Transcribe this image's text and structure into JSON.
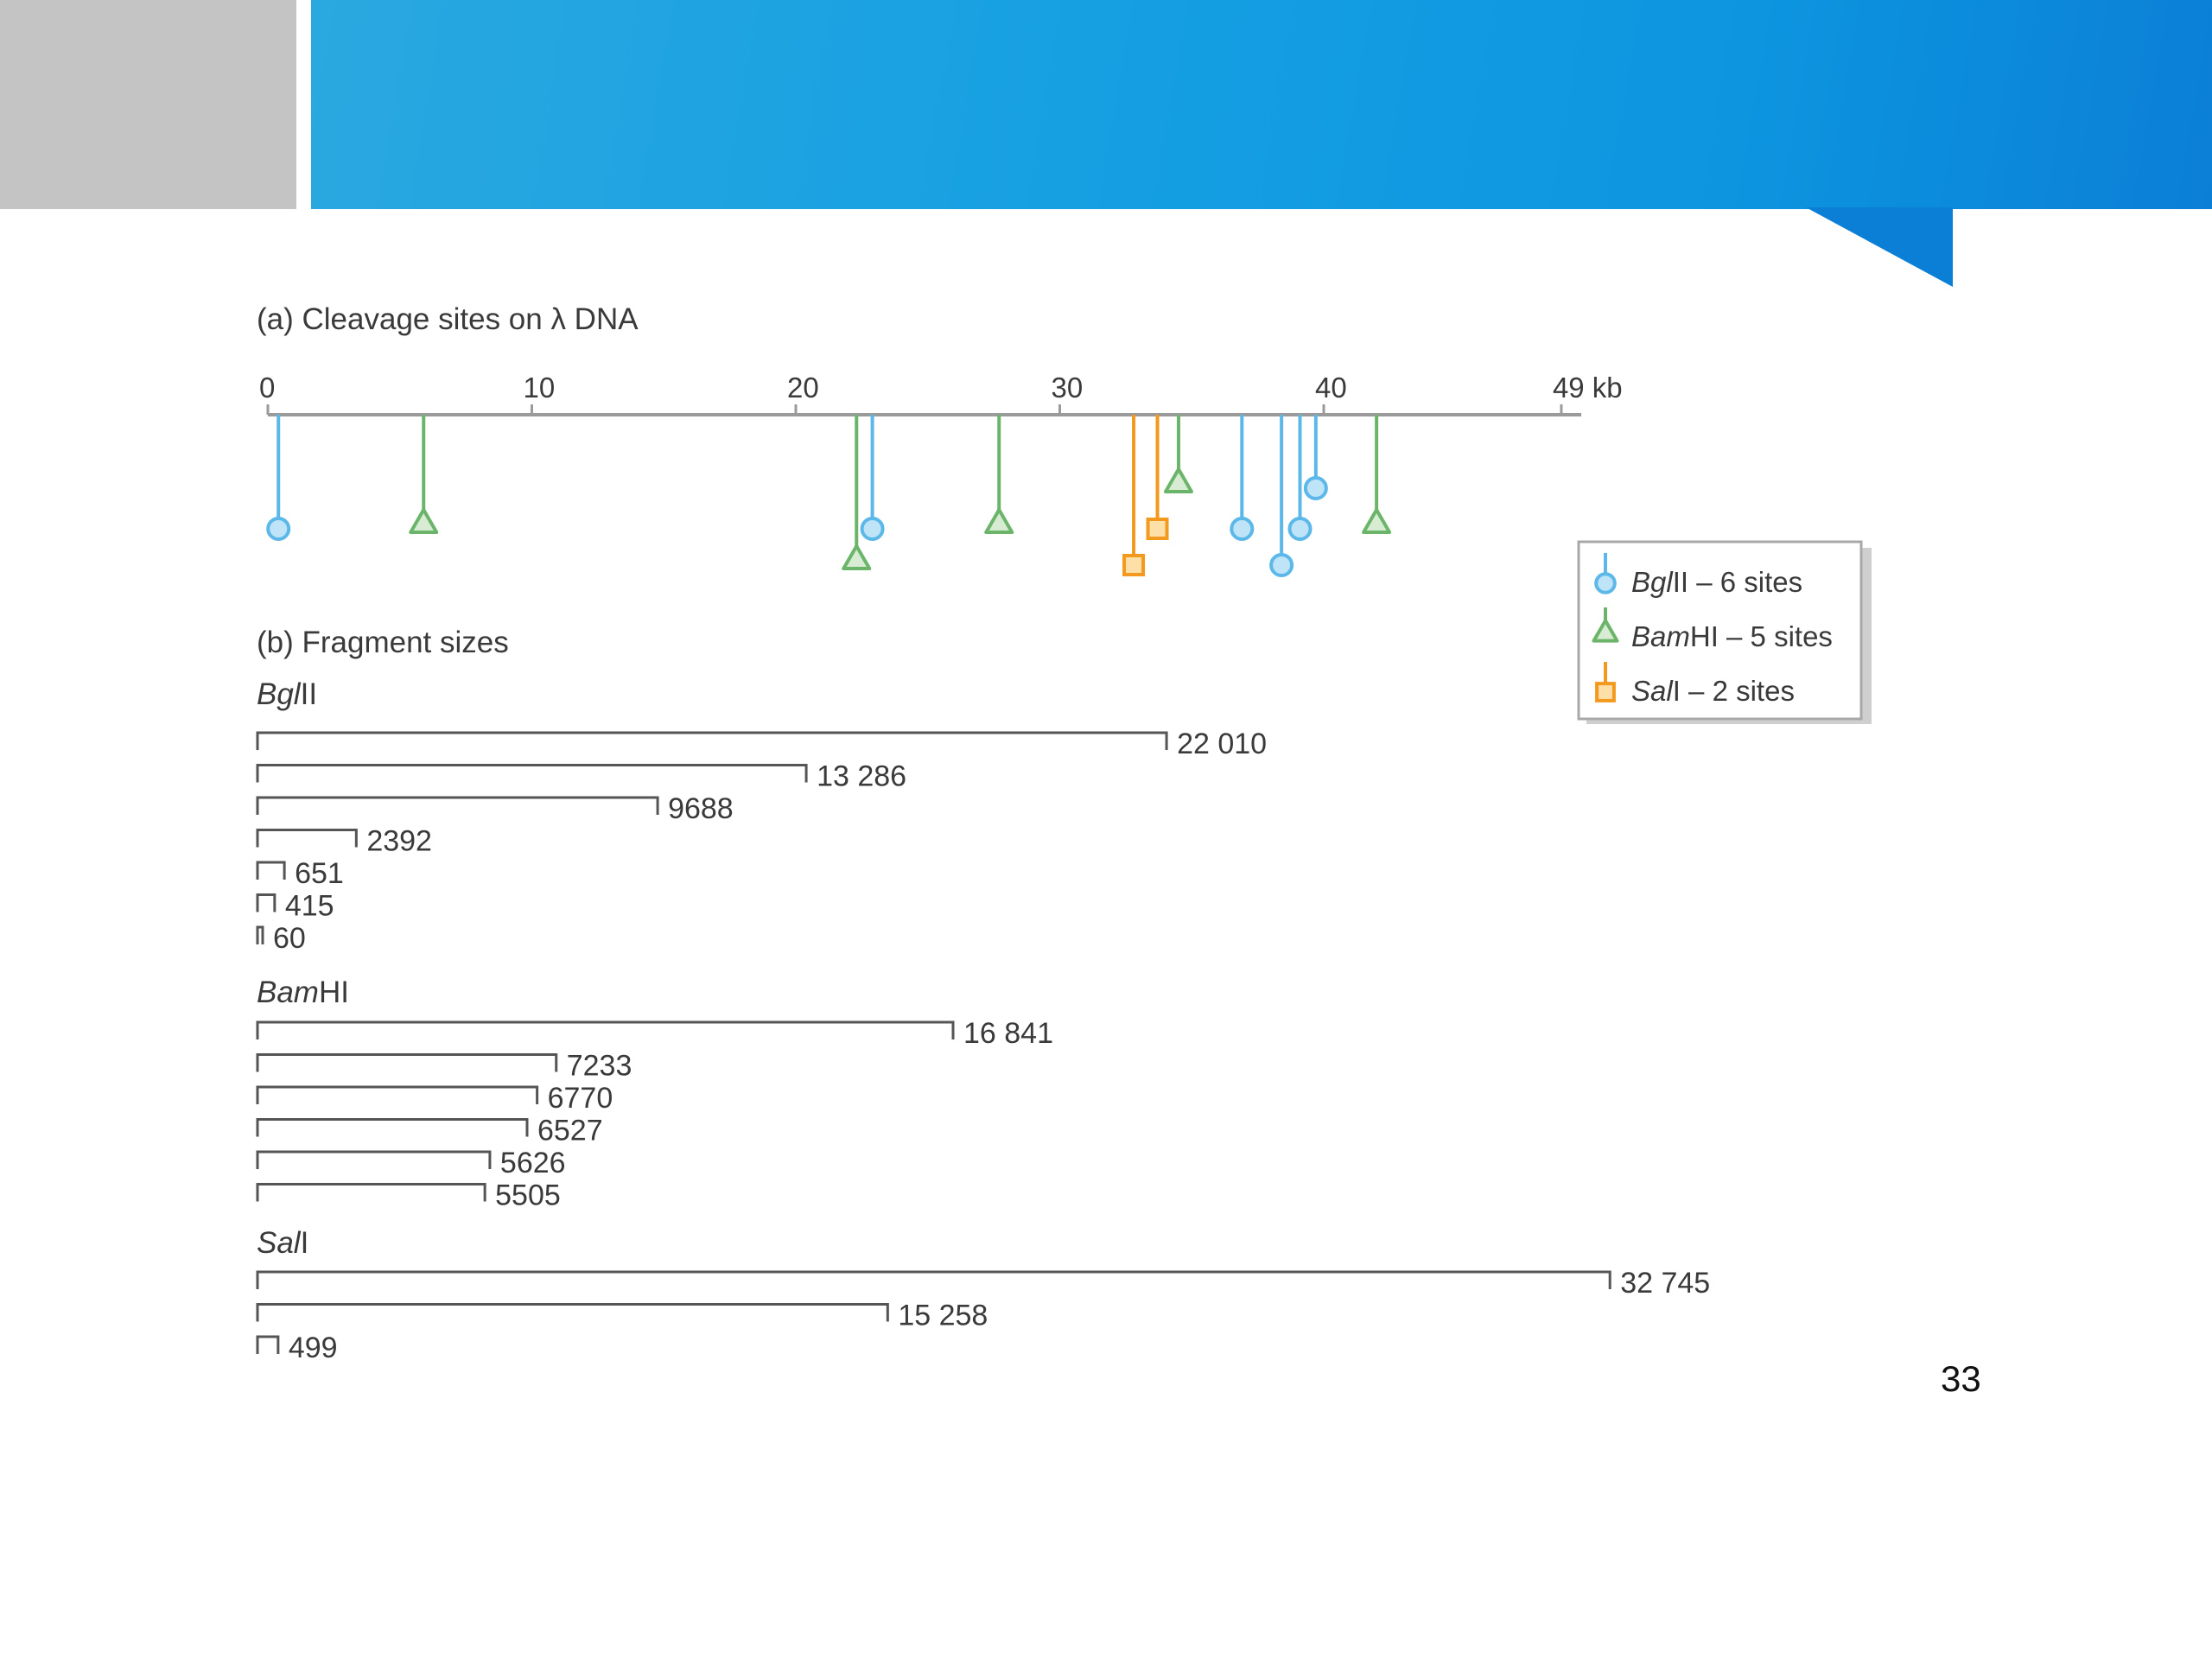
{
  "banner": {
    "accent_color": "#1aa3e0",
    "side_color": "#c4c4c4"
  },
  "panel_a": {
    "title": "(a) Cleavage sites on λ DNA",
    "axis": {
      "min": 0,
      "max": 49,
      "unit": "kb",
      "ticks": [
        {
          "value": 0,
          "label": "0"
        },
        {
          "value": 10,
          "label": "10"
        },
        {
          "value": 20,
          "label": "20"
        },
        {
          "value": 30,
          "label": "30"
        },
        {
          "value": 40,
          "label": "40"
        },
        {
          "value": 49,
          "label": "49 kb"
        }
      ]
    },
    "enzymes": [
      {
        "key": "bglII",
        "color": "#5bb8e8",
        "marker": "circle",
        "sites_kb": [
          0.4,
          22.9,
          36.9,
          38.4,
          39.1,
          39.7
        ],
        "site_depth": [
          1,
          1,
          1,
          2,
          1,
          0
        ]
      },
      {
        "key": "bamHI",
        "color": "#6bb56a",
        "marker": "triangle",
        "sites_kb": [
          5.9,
          22.3,
          27.7,
          34.5,
          42.0
        ],
        "site_depth": [
          1,
          2,
          1,
          0,
          1
        ]
      },
      {
        "key": "salI",
        "color": "#f39a1e",
        "marker": "square",
        "sites_kb": [
          32.8,
          33.7
        ],
        "site_depth": [
          2,
          1
        ]
      }
    ]
  },
  "legend": {
    "items": [
      {
        "name": "BglII",
        "name_italic": "Bgl",
        "name_rest": "II",
        "desc": " – 6 sites",
        "marker": "circle",
        "color": "#5bb8e8"
      },
      {
        "name": "BamHI",
        "name_italic": "Bam",
        "name_rest": "HI",
        "desc": " – 5 sites",
        "marker": "triangle",
        "color": "#6bb56a"
      },
      {
        "name": "SalI",
        "name_italic": "Sal",
        "name_rest": "I",
        "desc": " – 2 sites",
        "marker": "square",
        "color": "#f39a1e"
      }
    ]
  },
  "panel_b": {
    "title": "(b) Fragment sizes",
    "groups": [
      {
        "italic": "Bgl",
        "rest": "II",
        "fragments": [
          {
            "bp": 22010,
            "label": "22 010"
          },
          {
            "bp": 13286,
            "label": "13 286"
          },
          {
            "bp": 9688,
            "label": "9688"
          },
          {
            "bp": 2392,
            "label": "2392"
          },
          {
            "bp": 651,
            "label": "651"
          },
          {
            "bp": 415,
            "label": "415"
          },
          {
            "bp": 60,
            "label": "60"
          }
        ]
      },
      {
        "italic": "Bam",
        "rest": "HI",
        "fragments": [
          {
            "bp": 16841,
            "label": "16 841"
          },
          {
            "bp": 7233,
            "label": "7233"
          },
          {
            "bp": 6770,
            "label": "6770"
          },
          {
            "bp": 6527,
            "label": "6527"
          },
          {
            "bp": 5626,
            "label": "5626"
          },
          {
            "bp": 5505,
            "label": "5505"
          }
        ]
      },
      {
        "italic": "Sal",
        "rest": "I",
        "fragments": [
          {
            "bp": 32745,
            "label": "32 745"
          },
          {
            "bp": 15258,
            "label": "15 258"
          },
          {
            "bp": 499,
            "label": "499"
          }
        ]
      }
    ]
  },
  "slide": {
    "number": "33"
  }
}
